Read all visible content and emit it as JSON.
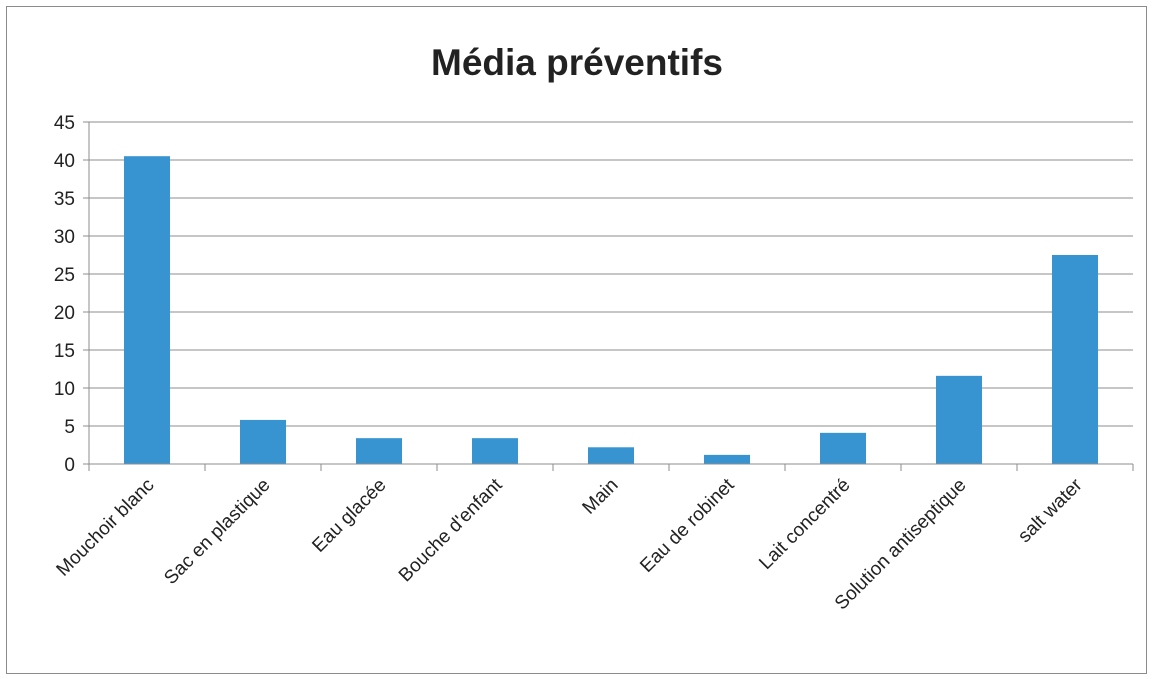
{
  "chart_data": {
    "type": "bar",
    "title": "Média préventifs",
    "xlabel": "",
    "ylabel": "",
    "categories": [
      "Mouchoir blanc",
      "Sac en plastique",
      "Eau glacée",
      "Bouche d'enfant",
      "Main",
      "Eau de robinet",
      "Lait concentré",
      "Solution antiseptique",
      "salt water"
    ],
    "values": [
      40.5,
      5.8,
      3.4,
      3.4,
      2.2,
      1.2,
      4.1,
      11.6,
      27.5
    ],
    "ylim": [
      0,
      45
    ],
    "yticks": [
      "0",
      "5",
      "10",
      "15",
      "20",
      "25",
      "30",
      "35",
      "40",
      "45"
    ],
    "grid": true,
    "bar_color": "#3894d0",
    "grid_color": "#8c8c8c"
  }
}
